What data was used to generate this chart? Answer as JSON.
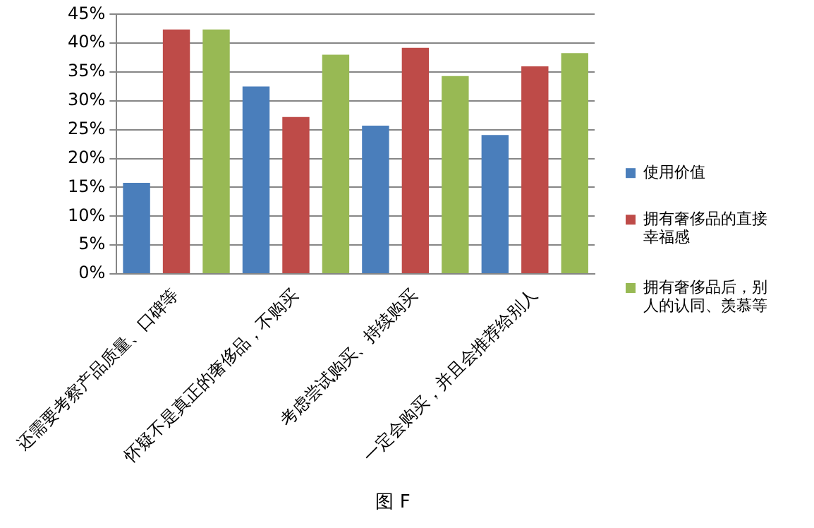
{
  "chart_data": {
    "type": "bar",
    "categories": [
      "还需要考察产品质量、口碑等",
      "怀疑不是真正的奢侈品，不购买",
      "考虑尝试购买、持续购买",
      "一定会购买，并且会推荐给别人"
    ],
    "series": [
      {
        "name": "使用价值",
        "color": "#4a7ebb",
        "values": [
          15.8,
          32.5,
          25.7,
          24.1
        ]
      },
      {
        "name": "拥有奢侈品的直接幸福感",
        "color": "#be4b48",
        "values": [
          42.4,
          27.2,
          39.2,
          36.0
        ]
      },
      {
        "name": "拥有奢侈品后，别人的认同、羡慕等",
        "color": "#98b954",
        "values": [
          42.4,
          38.0,
          34.3,
          38.3
        ]
      }
    ],
    "ylim": [
      0,
      45
    ],
    "yticks": [
      {
        "value": 0,
        "label": "0%"
      },
      {
        "value": 5,
        "label": "5%"
      },
      {
        "value": 10,
        "label": "10%"
      },
      {
        "value": 15,
        "label": "15%"
      },
      {
        "value": 20,
        "label": "20%"
      },
      {
        "value": 25,
        "label": "25%"
      },
      {
        "value": 30,
        "label": "30%"
      },
      {
        "value": 35,
        "label": "35%"
      },
      {
        "value": 40,
        "label": "40%"
      },
      {
        "value": 45,
        "label": "45%"
      }
    ],
    "grid": "y",
    "legend": "right",
    "annotations": [
      "图 F"
    ]
  }
}
